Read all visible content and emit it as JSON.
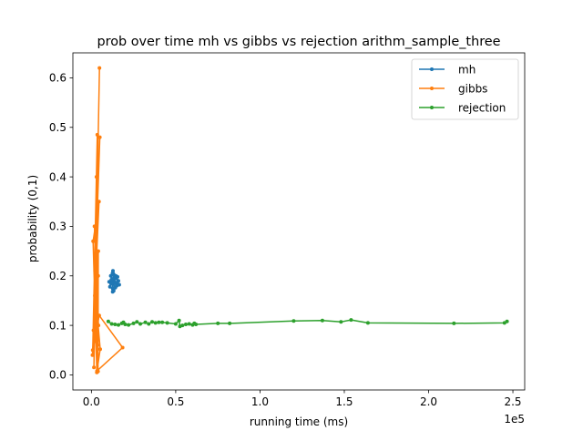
{
  "chart_data": {
    "type": "line",
    "title": "prob over time mh vs gibbs vs rejection arithm_sample_three",
    "xlabel": "running time (ms)",
    "ylabel": "probability (0,1)",
    "x_offset_label": "1e5",
    "xlim": [
      -11000,
      257000
    ],
    "ylim": [
      -0.0305,
      0.6505
    ],
    "x_ticks": [
      0,
      50000,
      100000,
      150000,
      200000,
      250000
    ],
    "x_tick_labels": [
      "0.0",
      "0.5",
      "1.0",
      "1.5",
      "2.0",
      "2.5"
    ],
    "y_ticks": [
      0.0,
      0.1,
      0.2,
      0.3,
      0.4,
      0.5,
      0.6
    ],
    "y_tick_labels": [
      "0.0",
      "0.1",
      "0.2",
      "0.3",
      "0.4",
      "0.5",
      "0.6"
    ],
    "grid": false,
    "legend_position": "top-right",
    "series": [
      {
        "name": "mh",
        "color": "#1f77b4",
        "x": [
          12000,
          13000,
          11500,
          14000,
          12500,
          15000,
          13500,
          11000,
          14500,
          12800,
          16000,
          13200,
          12200,
          15500,
          14200,
          11800,
          16500,
          13800,
          10500,
          12600
        ],
        "y": [
          0.19,
          0.175,
          0.2,
          0.185,
          0.205,
          0.18,
          0.195,
          0.178,
          0.2,
          0.21,
          0.19,
          0.17,
          0.185,
          0.198,
          0.176,
          0.192,
          0.182,
          0.2,
          0.188,
          0.168
        ]
      },
      {
        "name": "gibbs",
        "color": "#ff7f0e",
        "x": [
          4800,
          1500,
          3500,
          800,
          2500,
          4000,
          1200,
          3000,
          2000,
          4500,
          1000,
          3200,
          2800,
          4200,
          1800,
          3700,
          2200,
          5000,
          600,
          4600,
          18500,
          3300,
          5200,
          2700,
          4100,
          3900
        ],
        "y": [
          0.62,
          0.015,
          0.485,
          0.05,
          0.29,
          0.2,
          0.09,
          0.4,
          0.16,
          0.35,
          0.27,
          0.005,
          0.22,
          0.1,
          0.3,
          0.06,
          0.21,
          0.48,
          0.04,
          0.12,
          0.055,
          0.008,
          0.052,
          0.15,
          0.25,
          0.007
        ]
      },
      {
        "name": "rejection",
        "color": "#2ca02c",
        "x": [
          10000,
          12000,
          14000,
          16000,
          18000,
          19000,
          20000,
          22000,
          25000,
          27000,
          29000,
          32000,
          34000,
          36000,
          38000,
          40000,
          42000,
          45000,
          50000,
          52000,
          52500,
          54000,
          56000,
          58000,
          60000,
          61000,
          62000,
          75000,
          82000,
          120000,
          137000,
          148000,
          154000,
          164000,
          215000,
          245000,
          246500
        ],
        "y": [
          0.108,
          0.103,
          0.102,
          0.101,
          0.104,
          0.106,
          0.102,
          0.101,
          0.104,
          0.107,
          0.103,
          0.106,
          0.103,
          0.107,
          0.105,
          0.106,
          0.106,
          0.105,
          0.103,
          0.11,
          0.098,
          0.1,
          0.102,
          0.103,
          0.101,
          0.104,
          0.102,
          0.104,
          0.104,
          0.109,
          0.11,
          0.107,
          0.111,
          0.105,
          0.104,
          0.105,
          0.108
        ]
      }
    ]
  }
}
